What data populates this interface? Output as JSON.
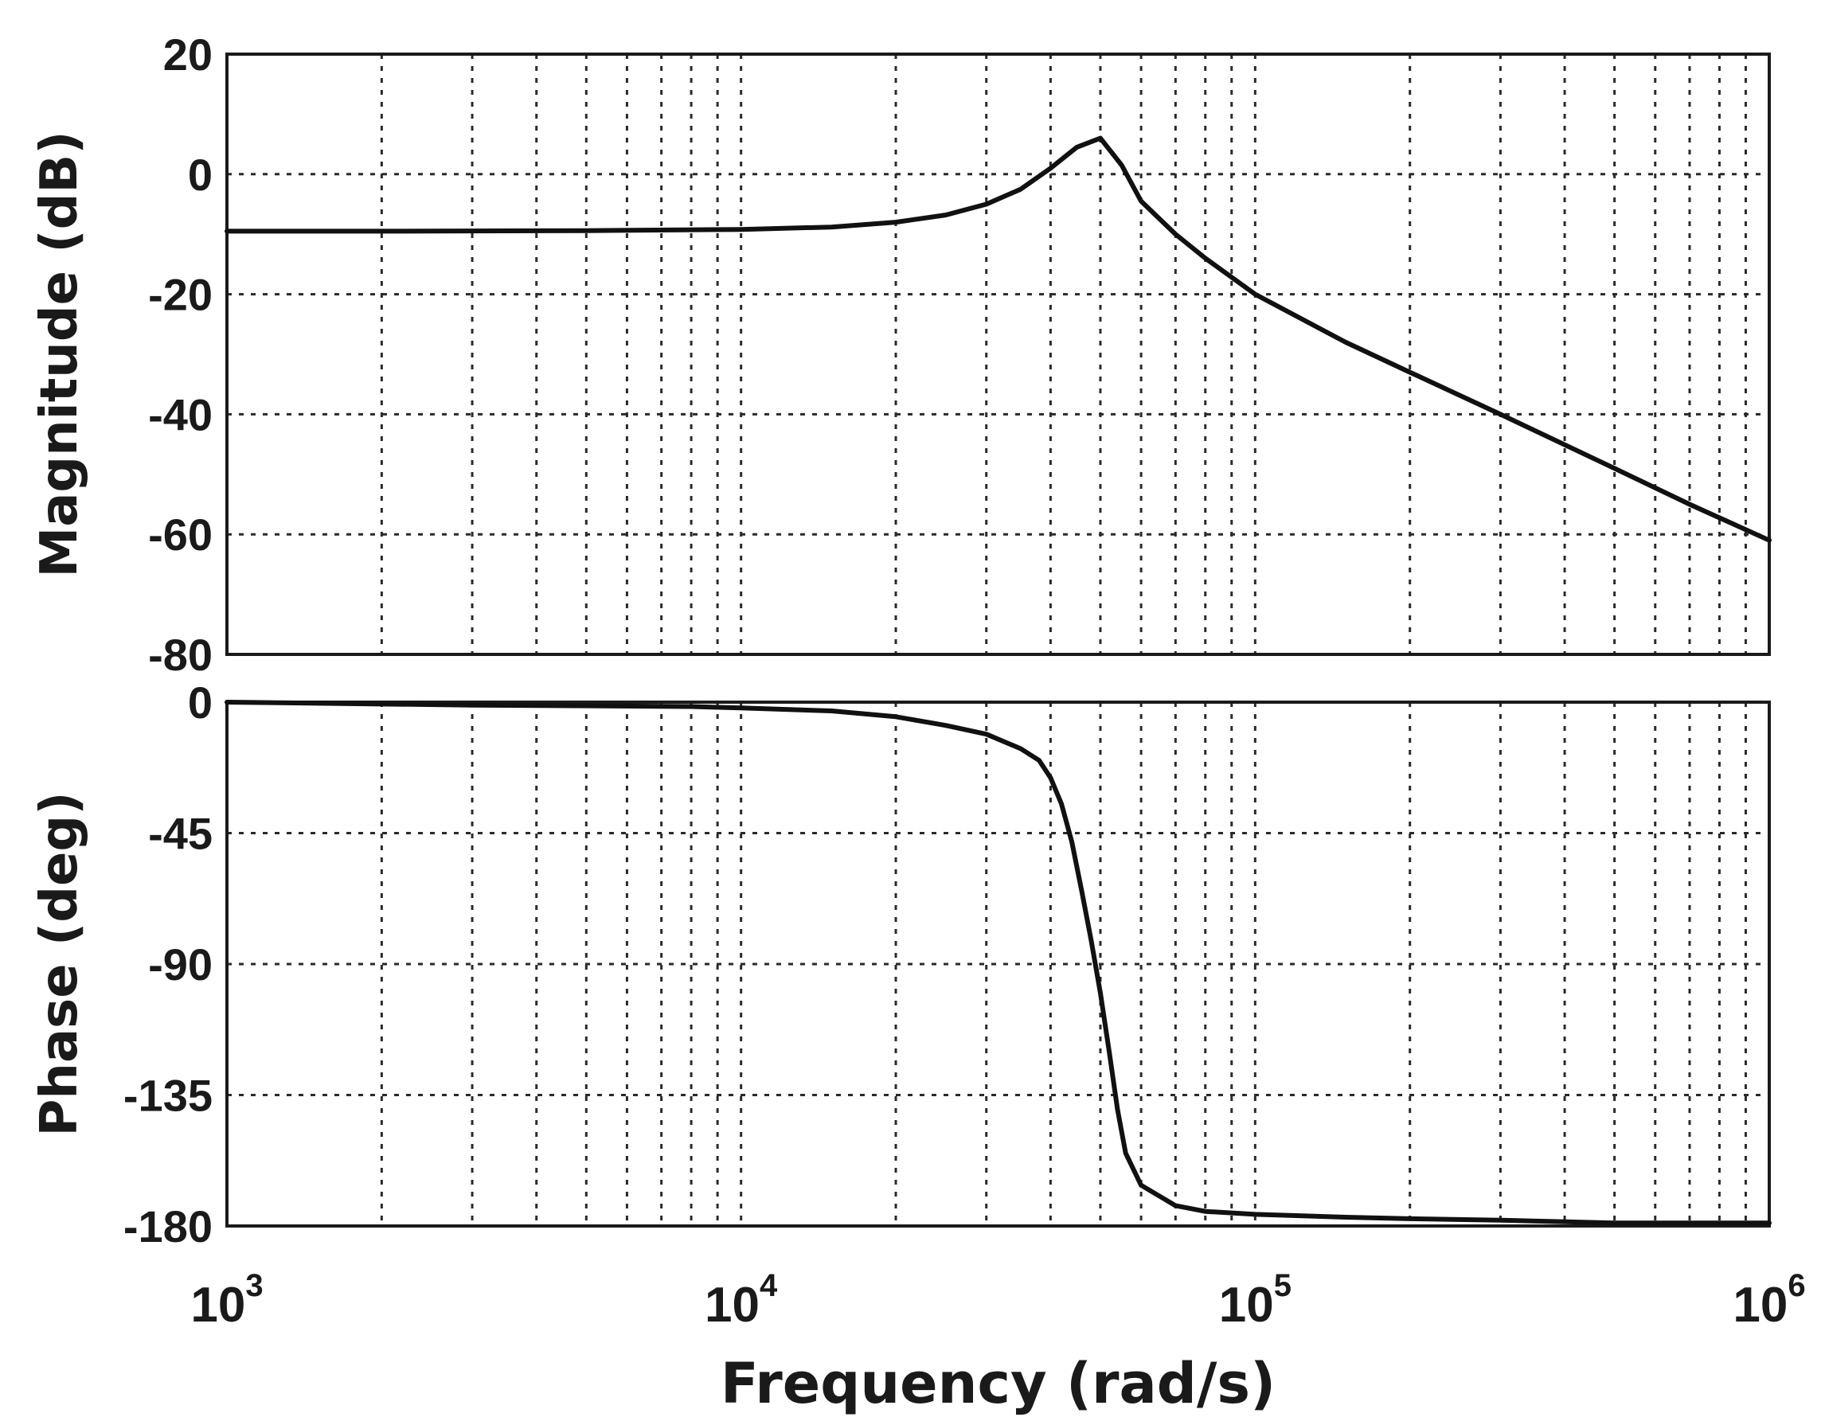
{
  "chart_data": [
    {
      "type": "line",
      "panel": "magnitude",
      "title": "",
      "ylabel": "Magnitude (dB)",
      "xlabel": "",
      "xscale": "log",
      "xlim": [
        1000,
        1000000
      ],
      "ylim": [
        -80,
        20
      ],
      "yticks": [
        20,
        0,
        -20,
        -40,
        -60,
        -80
      ],
      "ytick_labels": [
        "20",
        "0",
        "-20",
        "-40",
        "-60",
        "-80"
      ],
      "grid": true,
      "series": [
        {
          "x": [
            1000,
            2000,
            5000,
            10000,
            15000,
            20000,
            25000,
            30000,
            35000,
            40000,
            45000,
            50000,
            55000,
            60000,
            70000,
            80000,
            100000,
            150000,
            200000,
            300000,
            500000,
            700000,
            1000000
          ],
          "y": [
            -9.5,
            -9.5,
            -9.4,
            -9.2,
            -8.8,
            -8.0,
            -6.8,
            -5.0,
            -2.5,
            1.0,
            4.5,
            6.0,
            1.5,
            -4.5,
            -10.0,
            -14.0,
            -20.0,
            -28.0,
            -33.0,
            -40.0,
            -49.0,
            -55.0,
            -61.0
          ]
        }
      ]
    },
    {
      "type": "line",
      "panel": "phase",
      "title": "",
      "ylabel": "Phase (deg)",
      "xlabel": "Frequency (rad/s)",
      "xscale": "log",
      "xlim": [
        1000,
        1000000
      ],
      "ylim": [
        -180,
        0
      ],
      "yticks": [
        0,
        -45,
        -90,
        -135,
        -180
      ],
      "ytick_labels": [
        "0",
        "-45",
        "-90",
        "-135",
        "-180"
      ],
      "xticks": [
        1000,
        10000,
        100000,
        1000000
      ],
      "xtick_bases": [
        "10",
        "10",
        "10",
        "10"
      ],
      "xtick_exponents": [
        "3",
        "4",
        "5",
        "6"
      ],
      "grid": true,
      "series": [
        {
          "x": [
            1000,
            3000,
            8000,
            10000,
            15000,
            20000,
            25000,
            30000,
            35000,
            38000,
            40000,
            42000,
            44000,
            46000,
            48000,
            50000,
            52000,
            54000,
            56000,
            60000,
            70000,
            80000,
            100000,
            150000,
            200000,
            300000,
            500000,
            1000000
          ],
          "y": [
            0,
            -1,
            -1.5,
            -2,
            -3,
            -5,
            -8,
            -11,
            -16,
            -20,
            -26,
            -35,
            -48,
            -65,
            -82,
            -100,
            -120,
            -140,
            -155,
            -166,
            -173,
            -175,
            -176,
            -177,
            -177.5,
            -178,
            -179,
            -179
          ]
        }
      ]
    }
  ]
}
